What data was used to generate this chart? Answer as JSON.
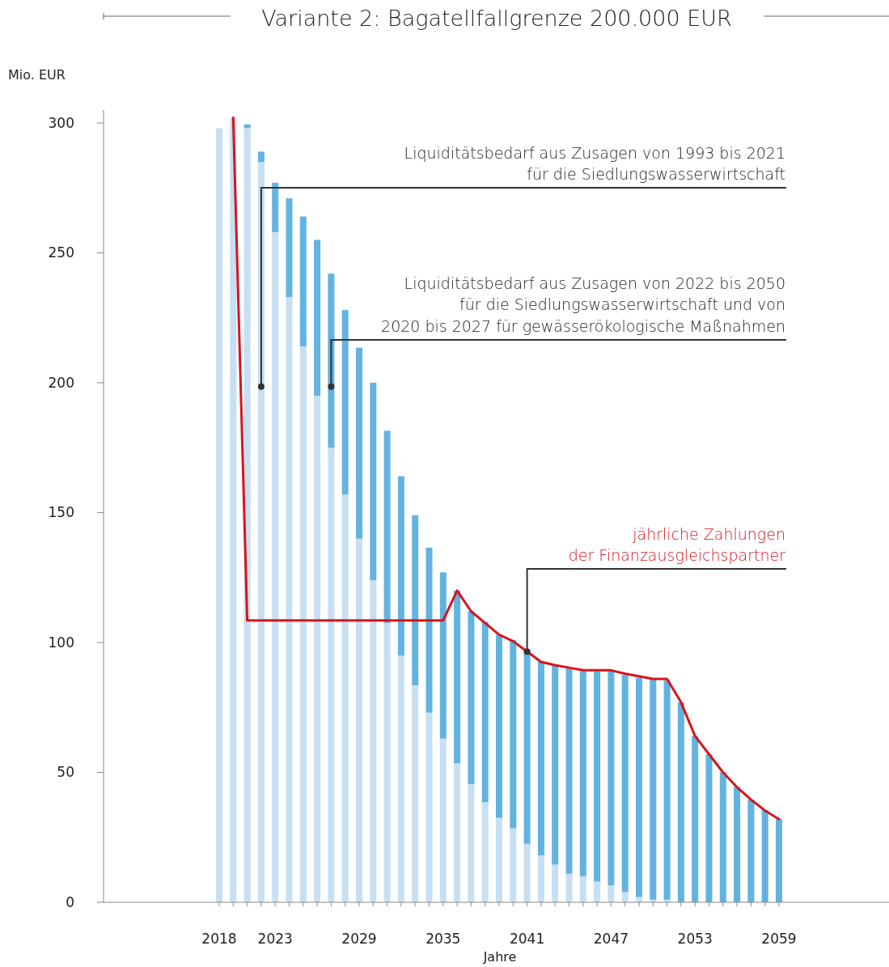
{
  "chart_data": {
    "type": "bar",
    "stacked": true,
    "title": "Variante 2: Bagatellfallgrenze 200.000 EUR",
    "ylabel": "Mio. EUR",
    "xlabel": "Jahre",
    "categories": [
      "2018",
      null,
      null,
      null,
      "2023",
      null,
      null,
      null,
      null,
      null,
      "2029",
      null,
      null,
      null,
      null,
      null,
      "2035",
      null,
      null,
      null,
      null,
      null,
      "2041",
      null,
      null,
      null,
      null,
      null,
      "2047",
      null,
      null,
      null,
      null,
      null,
      "2053",
      null,
      null,
      null,
      null,
      null,
      "2059"
    ],
    "series": [
      {
        "color": "#c7dff2",
        "values": [
          298,
          302,
          298,
          285,
          258,
          233,
          214,
          195,
          175,
          157,
          140,
          124,
          107.5,
          95,
          83.5,
          73,
          63,
          53.5,
          45.5,
          38.5,
          32.5,
          28.5,
          22.5,
          18,
          14.5,
          11,
          10,
          8,
          6.5,
          4,
          2,
          1,
          1,
          0,
          0,
          0,
          0,
          0,
          0,
          0,
          0
        ]
      },
      {
        "color": "#62b3e0",
        "values": [
          0,
          0,
          1.5,
          4,
          19,
          38,
          50,
          60,
          67,
          71,
          73.5,
          76,
          74,
          69,
          65.5,
          63.5,
          64,
          66.5,
          66.5,
          69.5,
          70.5,
          72.5,
          74.5,
          74.5,
          77,
          79,
          79,
          81,
          82.5,
          83.5,
          84.5,
          85,
          84.5,
          77,
          64,
          57,
          50,
          44.5,
          39.5,
          35.5,
          32
        ]
      },
      {
        "type": "line",
        "color": "#d7141c",
        "values": [
          null,
          302,
          108.5,
          108.5,
          108.5,
          108.5,
          108.5,
          108.5,
          108.5,
          108.5,
          108.5,
          108.5,
          108.5,
          108.5,
          108.5,
          108.5,
          108.5,
          120,
          112,
          107.5,
          103,
          100.5,
          96.5,
          92.5,
          91.3,
          90.3,
          89.3,
          89.3,
          89.3,
          88,
          87,
          86,
          86,
          77,
          64,
          57,
          50,
          44.3,
          39.5,
          35.3,
          32
        ]
      }
    ],
    "ylim": [
      0,
      305
    ],
    "yticks": [
      0,
      50,
      100,
      150,
      200,
      250,
      300
    ],
    "annotations": [
      "Liquiditätsbedarf aus Zusagen von 1993 bis 2021\nfür die Siedlungswasserwirtschaft",
      "Liquiditätsbedarf aus Zusagen von 2022 bis 2050\nfür die Siedlungswasserwirtschaft und von\n2020 bis 2027 für gewässerökologische Maßnahmen",
      "jährliche Zahlungen\nder Finanzausgleichspartner"
    ]
  }
}
